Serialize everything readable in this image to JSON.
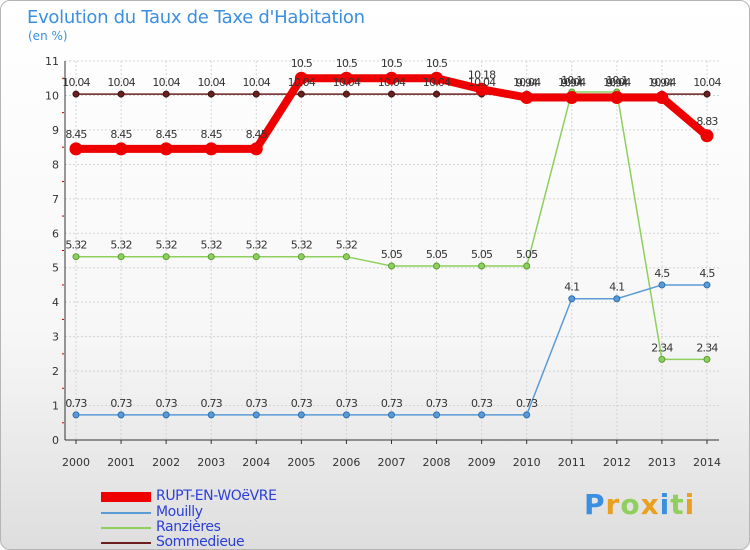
{
  "chart_data": {
    "type": "line",
    "title": "Evolution du Taux de Taxe d'Habitation",
    "ylabel": "(en %)",
    "xlabel": "",
    "ylim": [
      0,
      11
    ],
    "yticks": [
      "0",
      "1",
      "2",
      "3",
      "4",
      "5",
      "6",
      "7",
      "8",
      "9",
      "10",
      "11"
    ],
    "grid": true,
    "legend_position": "bottom-left",
    "x": [
      "2000",
      "2001",
      "2002",
      "2003",
      "2004",
      "2005",
      "2006",
      "2007",
      "2008",
      "2009",
      "2010",
      "2011",
      "2012",
      "2013",
      "2014"
    ],
    "series": [
      {
        "name": "Sommedieue",
        "color": "#6b2020",
        "values": [
          10.04,
          10.04,
          10.04,
          10.04,
          10.04,
          10.04,
          10.04,
          10.04,
          10.04,
          10.04,
          10.04,
          10.04,
          10.04,
          10.04,
          10.04
        ],
        "labels": [
          "10.04",
          "10.04",
          "10.04",
          "10.04",
          "10.04",
          "10.04",
          "10.04",
          "10.04",
          "10.04",
          "10.04",
          "10.04",
          "10.04",
          "10.04",
          "10.04",
          "10.04"
        ]
      },
      {
        "name": "Ranzières",
        "color": "#8ecf5e",
        "values": [
          5.32,
          5.32,
          5.32,
          5.32,
          5.32,
          5.32,
          5.32,
          5.05,
          5.05,
          5.05,
          5.05,
          10.1,
          10.1,
          2.34,
          2.34
        ],
        "labels": [
          "5.32",
          "5.32",
          "5.32",
          "5.32",
          "5.32",
          "5.32",
          "5.32",
          "5.05",
          "5.05",
          "5.05",
          "5.05",
          "10.1",
          "10.1",
          "2.34",
          "2.34"
        ]
      },
      {
        "name": "Mouilly",
        "color": "#5b9bd5",
        "values": [
          0.73,
          0.73,
          0.73,
          0.73,
          0.73,
          0.73,
          0.73,
          0.73,
          0.73,
          0.73,
          0.73,
          4.1,
          4.1,
          4.5,
          4.5
        ],
        "labels": [
          "0.73",
          "0.73",
          "0.73",
          "0.73",
          "0.73",
          "0.73",
          "0.73",
          "0.73",
          "0.73",
          "0.73",
          "0.73",
          "4.1",
          "4.1",
          "4.5",
          "4.5"
        ]
      },
      {
        "name": "RUPT-EN-WOëVRE",
        "color": "#ee0000",
        "values": [
          8.45,
          8.45,
          8.45,
          8.45,
          8.45,
          10.5,
          10.5,
          10.5,
          10.5,
          10.18,
          9.94,
          9.94,
          9.94,
          9.94,
          8.83
        ],
        "labels": [
          "8.45",
          "8.45",
          "8.45",
          "8.45",
          "8.45",
          "10.5",
          "10.5",
          "10.5",
          "10.5",
          "10.18",
          "9.94",
          "9.94",
          "9.94",
          "9.94",
          "8.83"
        ]
      }
    ],
    "legend": [
      {
        "name": "RUPT-EN-WOëVRE",
        "color": "#ee0000",
        "style": "thick"
      },
      {
        "name": "Mouilly",
        "color": "#5b9bd5",
        "style": "thin"
      },
      {
        "name": "Ranzières",
        "color": "#8ecf5e",
        "style": "thin"
      },
      {
        "name": "Sommedieue",
        "color": "#6b2020",
        "style": "thin"
      }
    ]
  },
  "logo": {
    "letters": [
      "P",
      "r",
      "o",
      "x",
      "i",
      "t",
      "i"
    ],
    "colors": [
      "#3b8fe0",
      "#e8a020",
      "#8ecf5e",
      "#e8a020",
      "#3b8fe0",
      "#8ecf5e",
      "#e8a020"
    ]
  }
}
